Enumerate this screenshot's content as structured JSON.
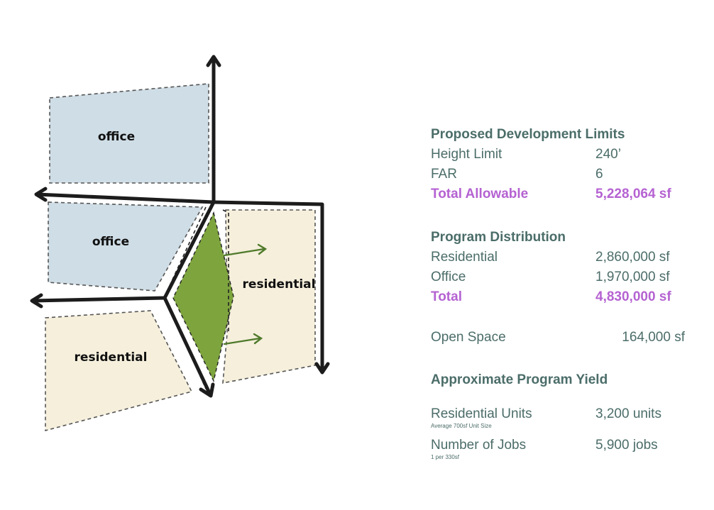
{
  "colors": {
    "office": "#cfdde6",
    "residential": "#f5efdc",
    "open_space": "#7ea43e",
    "axis": "#1c1c1c",
    "text": "#4b6d69",
    "highlight": "#b562d2"
  },
  "diagram": {
    "labels": {
      "office_top": "office",
      "office_mid": "office",
      "residential_left": "residential",
      "residential_right": "residential"
    }
  },
  "panel": {
    "limits": {
      "title": "Proposed Development Limits",
      "rows": [
        {
          "label": "Height Limit",
          "value": "240’"
        },
        {
          "label": "FAR",
          "value": "6"
        },
        {
          "label": "Total Allowable",
          "value": "5,228,064 sf"
        }
      ]
    },
    "distribution": {
      "title": "Program Distribution",
      "rows": [
        {
          "label": "Residential",
          "value": "2,860,000 sf"
        },
        {
          "label": "Office",
          "value": "1,970,000 sf"
        },
        {
          "label": "Total",
          "value": "4,830,000 sf"
        }
      ]
    },
    "open_space": {
      "label": "Open Space",
      "value": "164,000 sf"
    },
    "yield": {
      "title": "Approximate Program Yield",
      "units": {
        "label": "Residential Units",
        "value": "3,200 units",
        "note": "Average 700sf Unit Size"
      },
      "jobs": {
        "label": "Number of Jobs",
        "value": "5,900 jobs",
        "note": "1 per 330sf"
      }
    }
  }
}
